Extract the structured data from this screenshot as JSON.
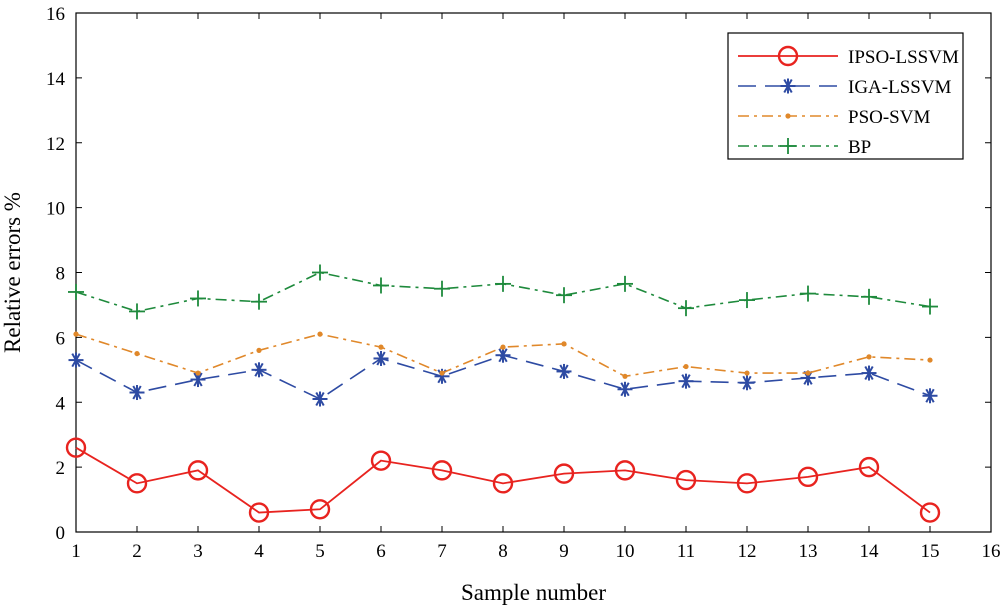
{
  "chart_data": {
    "type": "line",
    "title": "",
    "xlabel": "Sample number",
    "ylabel": "Relative errors %",
    "xlim": [
      1,
      16
    ],
    "ylim": [
      0,
      16
    ],
    "xticks": [
      "1",
      "2",
      "3",
      "4",
      "5",
      "6",
      "7",
      "8",
      "9",
      "10",
      "11",
      "12",
      "13",
      "14",
      "15",
      "16"
    ],
    "yticks": [
      "0",
      "2",
      "4",
      "6",
      "8",
      "10",
      "12",
      "14",
      "16"
    ],
    "grid": false,
    "legend_position": "top-right",
    "x": [
      1,
      2,
      3,
      4,
      5,
      6,
      7,
      8,
      9,
      10,
      11,
      12,
      13,
      14,
      15
    ],
    "series": [
      {
        "name": "IPSO-LSSVM",
        "color": "#e8231f",
        "style": "solid",
        "marker": "circle",
        "values": [
          2.6,
          1.5,
          1.9,
          0.6,
          0.7,
          2.2,
          1.9,
          1.5,
          1.8,
          1.9,
          1.6,
          1.5,
          1.7,
          2.0,
          0.6
        ]
      },
      {
        "name": "IGA-LSSVM",
        "color": "#2e4ba3",
        "style": "dashed",
        "marker": "asterisk",
        "values": [
          5.3,
          4.3,
          4.7,
          5.0,
          4.1,
          5.35,
          4.8,
          5.45,
          4.95,
          4.4,
          4.65,
          4.6,
          4.75,
          4.9,
          4.2
        ]
      },
      {
        "name": "PSO-SVM",
        "color": "#e0882a",
        "style": "dashdot",
        "marker": "dot",
        "values": [
          6.1,
          5.5,
          4.9,
          5.6,
          6.1,
          5.7,
          4.9,
          5.7,
          5.8,
          4.8,
          5.1,
          4.9,
          4.9,
          5.4,
          5.3
        ]
      },
      {
        "name": "BP",
        "color": "#1e8a3c",
        "style": "dashdot",
        "marker": "plus",
        "values": [
          7.4,
          6.8,
          7.2,
          7.1,
          8.0,
          7.6,
          7.5,
          7.65,
          7.3,
          7.65,
          6.9,
          7.15,
          7.35,
          7.25,
          6.95
        ]
      }
    ]
  }
}
